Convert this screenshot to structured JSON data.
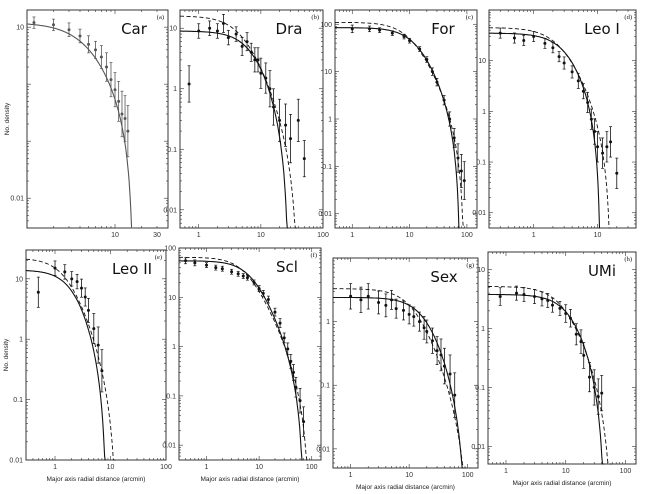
{
  "figure": {
    "xlabel": "Major axis radial distance (arcmin)",
    "ylabel": "No. density"
  },
  "chart_data": [
    {
      "type": "scatter",
      "title": "Car",
      "letter": "(a)",
      "faint": true,
      "xscale": "log",
      "yscale": "log",
      "xlim": [
        1,
        40
      ],
      "ylim": [
        0.003,
        20
      ],
      "xticks": [
        10,
        30
      ],
      "yticks": [
        10,
        0.01
      ],
      "xtick_labels": [
        "10",
        "30"
      ],
      "ytick_labels": [
        "10",
        "0.01"
      ],
      "ylabel": "No. density",
      "x": [
        1.2,
        2,
        3,
        4,
        5,
        6,
        7,
        8,
        9,
        10,
        11,
        12,
        13,
        14
      ],
      "y": [
        12,
        11,
        9,
        7,
        5,
        4,
        3,
        2,
        1.2,
        0.8,
        0.5,
        0.3,
        0.25,
        0.15
      ],
      "yerr": [
        0.1,
        0.1,
        0.12,
        0.12,
        0.15,
        0.15,
        0.2,
        0.25,
        0.3,
        0.3,
        0.35,
        0.4,
        0.4,
        0.45
      ],
      "model_solid": {
        "y0": 12,
        "rc": 5,
        "rt": 16
      },
      "model_dashed": null
    },
    {
      "type": "scatter",
      "title": "Dra",
      "letter": "(b)",
      "xscale": "log",
      "yscale": "log",
      "xlim": [
        0.5,
        100
      ],
      "ylim": [
        0.005,
        20
      ],
      "xticks": [
        1,
        10,
        100
      ],
      "yticks": [
        10,
        1,
        0.1,
        0.01
      ],
      "xtick_labels": [
        "1",
        "10",
        "100"
      ],
      "ytick_labels": [
        "10",
        "1",
        "0.1",
        "0.01"
      ],
      "ylabel": "",
      "x": [
        0.7,
        1,
        1.5,
        2,
        2.5,
        3,
        4,
        5,
        6,
        7,
        8,
        9,
        10,
        12,
        14,
        16,
        20,
        25,
        30,
        40,
        50
      ],
      "y": [
        1.2,
        9,
        10,
        9,
        12,
        7,
        8,
        5,
        6,
        4,
        3,
        3,
        1.8,
        1.5,
        1,
        0.5,
        0.3,
        0.25,
        0.15,
        0.3,
        0.07
      ],
      "yerr": [
        0.3,
        0.12,
        0.12,
        0.12,
        0.15,
        0.12,
        0.12,
        0.15,
        0.15,
        0.15,
        0.2,
        0.2,
        0.25,
        0.25,
        0.3,
        0.3,
        0.35,
        0.35,
        0.4,
        0.35,
        0.3
      ],
      "model_solid": {
        "y0": 9,
        "rc": 8,
        "rt": 28
      },
      "model_dashed": {
        "y0": 16,
        "rc": 5,
        "rt": 40
      }
    },
    {
      "type": "scatter",
      "title": "For",
      "letter": "(c)",
      "xscale": "log",
      "yscale": "log",
      "xlim": [
        0.5,
        150
      ],
      "ylim": [
        0.005,
        200
      ],
      "xticks": [
        1,
        10,
        100
      ],
      "yticks": [
        100,
        10,
        1,
        0.1,
        0.01
      ],
      "xtick_labels": [
        "1",
        "10",
        "100"
      ],
      "ytick_labels": [
        "100",
        "10",
        "1",
        "0.1",
        "0.01"
      ],
      "ylabel": "",
      "x": [
        1,
        2,
        3,
        5,
        8,
        10,
        15,
        20,
        25,
        30,
        40,
        50,
        60,
        70,
        80,
        90
      ],
      "y": [
        80,
        80,
        75,
        65,
        55,
        45,
        30,
        18,
        10,
        6,
        2.5,
        1,
        0.4,
        0.15,
        0.08,
        0.05
      ],
      "yerr": [
        0.08,
        0.06,
        0.05,
        0.05,
        0.05,
        0.05,
        0.05,
        0.06,
        0.08,
        0.08,
        0.1,
        0.15,
        0.2,
        0.3,
        0.35,
        0.4
      ],
      "model_solid": {
        "y0": 85,
        "rc": 13,
        "rt": 75
      },
      "model_dashed": {
        "y0": 110,
        "rc": 10,
        "rt": 90
      }
    },
    {
      "type": "scatter",
      "title": "Leo I",
      "letter": "(d)",
      "xscale": "log",
      "yscale": "log",
      "xlim": [
        0.2,
        40
      ],
      "ylim": [
        0.005,
        100
      ],
      "xticks": [
        1,
        10
      ],
      "yticks": [
        10,
        1,
        0.1,
        0.01
      ],
      "xtick_labels": [
        "1",
        "10"
      ],
      "ytick_labels": [
        "10",
        "1",
        "0.1",
        "0.01"
      ],
      "ylabel": "",
      "x": [
        0.3,
        0.5,
        0.7,
        1,
        1.5,
        2,
        2.5,
        3,
        4,
        5,
        6,
        7,
        8,
        9,
        10,
        12,
        14,
        16,
        20
      ],
      "y": [
        35,
        28,
        25,
        30,
        22,
        18,
        12,
        9,
        6,
        4,
        2.5,
        1.5,
        0.7,
        0.4,
        0.2,
        0.15,
        0.2,
        0.25,
        0.06
      ],
      "yerr": [
        0.1,
        0.1,
        0.1,
        0.1,
        0.1,
        0.1,
        0.1,
        0.12,
        0.12,
        0.15,
        0.15,
        0.2,
        0.2,
        0.25,
        0.3,
        0.3,
        0.3,
        0.3,
        0.3
      ],
      "model_solid": {
        "y0": 35,
        "rc": 3.5,
        "rt": 11
      },
      "model_dashed": {
        "y0": 45,
        "rc": 2.5,
        "rt": 16
      }
    },
    {
      "type": "scatter",
      "title": "Leo II",
      "letter": "(e)",
      "xscale": "log",
      "yscale": "log",
      "xlim": [
        0.3,
        100
      ],
      "ylim": [
        0.01,
        30
      ],
      "xticks": [
        1,
        10,
        100
      ],
      "yticks": [
        10,
        1,
        0.1,
        0.01
      ],
      "xtick_labels": [
        "1",
        "10",
        "100"
      ],
      "ytick_labels": [
        "10",
        "1",
        "0.1",
        "0.01"
      ],
      "ylabel": "No. density",
      "x": [
        0.5,
        1,
        1.5,
        2,
        2.5,
        3,
        3.5,
        4,
        5,
        6,
        7
      ],
      "y": [
        6,
        15,
        13,
        10,
        9,
        7,
        5,
        3,
        1.5,
        0.8,
        0.3
      ],
      "yerr": [
        0.25,
        0.12,
        0.12,
        0.12,
        0.12,
        0.15,
        0.15,
        0.2,
        0.25,
        0.3,
        0.35
      ],
      "model_solid": {
        "y0": 14,
        "rc": 2.3,
        "rt": 8.5
      },
      "model_dashed": {
        "y0": 22,
        "rc": 1.6,
        "rt": 13
      }
    },
    {
      "type": "scatter",
      "title": "Scl",
      "letter": "(f)",
      "xscale": "log",
      "yscale": "log",
      "xlim": [
        0.3,
        150
      ],
      "ylim": [
        0.005,
        100
      ],
      "xticks": [
        1,
        10,
        100
      ],
      "yticks": [
        100,
        10,
        1,
        0.1,
        0.01
      ],
      "xtick_labels": [
        "1",
        "10",
        "100"
      ],
      "ytick_labels": [
        "100",
        "10",
        "1",
        "0.1",
        "0.01"
      ],
      "ylabel": "",
      "x": [
        0.4,
        0.6,
        1,
        1.5,
        2,
        3,
        4,
        5,
        6,
        8,
        10,
        12,
        15,
        20,
        25,
        30,
        35,
        40,
        45,
        50,
        60,
        70
      ],
      "y": [
        55,
        50,
        45,
        40,
        38,
        33,
        30,
        27,
        25,
        20,
        15,
        12,
        9,
        5,
        3,
        1.5,
        0.9,
        0.5,
        0.3,
        0.15,
        0.08,
        0.03
      ],
      "yerr": [
        0.06,
        0.06,
        0.05,
        0.05,
        0.05,
        0.05,
        0.05,
        0.05,
        0.05,
        0.05,
        0.06,
        0.06,
        0.07,
        0.08,
        0.09,
        0.1,
        0.12,
        0.14,
        0.16,
        0.2,
        0.25,
        0.3
      ],
      "model_solid": {
        "y0": 55,
        "rc": 7,
        "rt": 70
      },
      "model_dashed": {
        "y0": 65,
        "rc": 5.5,
        "rt": 90
      }
    },
    {
      "type": "scatter",
      "title": "Sex",
      "letter": "(g)",
      "xscale": "log",
      "yscale": "log",
      "xlim": [
        0.5,
        150
      ],
      "ylim": [
        0.005,
        10
      ],
      "xticks": [
        1,
        10,
        100
      ],
      "yticks": [
        1,
        0.1,
        0.01
      ],
      "xtick_labels": [
        "1",
        "10",
        "100"
      ],
      "ytick_labels": [
        "1",
        "0.1",
        "0.01"
      ],
      "ylabel": "",
      "x": [
        1,
        1.5,
        2,
        3,
        4,
        5,
        6,
        8,
        10,
        12,
        15,
        18,
        20,
        25,
        30,
        35,
        40,
        50,
        60
      ],
      "y": [
        2.5,
        2.2,
        2.5,
        2.0,
        1.8,
        2.2,
        1.6,
        1.5,
        1.3,
        1.2,
        1.0,
        0.8,
        0.7,
        0.5,
        0.35,
        0.3,
        0.2,
        0.15,
        0.07
      ],
      "yerr": [
        0.2,
        0.2,
        0.2,
        0.18,
        0.18,
        0.15,
        0.15,
        0.15,
        0.15,
        0.15,
        0.15,
        0.18,
        0.18,
        0.2,
        0.22,
        0.25,
        0.28,
        0.3,
        0.35
      ],
      "model_solid": {
        "y0": 2.4,
        "rc": 20,
        "rt": 95
      },
      "model_dashed": {
        "y0": 3.3,
        "rc": 12,
        "rt": 110
      }
    },
    {
      "type": "scatter",
      "title": "UMi",
      "letter": "(h)",
      "xscale": "log",
      "yscale": "log",
      "xlim": [
        0.5,
        150
      ],
      "ylim": [
        0.005,
        20
      ],
      "xticks": [
        1,
        10,
        100
      ],
      "yticks": [
        10,
        1,
        0.1,
        0.01
      ],
      "xtick_labels": [
        "1",
        "10",
        "100"
      ],
      "ytick_labels": [
        "10",
        "1",
        "0.1",
        "0.01"
      ],
      "ylabel": "",
      "x": [
        0.8,
        1.5,
        2,
        3,
        4,
        5,
        6,
        8,
        10,
        12,
        15,
        18,
        20,
        25,
        30,
        35,
        40
      ],
      "y": [
        3.5,
        4,
        3.8,
        3.5,
        3.2,
        3,
        2.5,
        2.2,
        1.8,
        1.5,
        0.8,
        0.6,
        0.35,
        0.15,
        0.1,
        0.07,
        0.08
      ],
      "yerr": [
        0.15,
        0.12,
        0.12,
        0.12,
        0.12,
        0.12,
        0.12,
        0.12,
        0.15,
        0.15,
        0.18,
        0.2,
        0.22,
        0.25,
        0.3,
        0.3,
        0.3
      ],
      "model_solid": {
        "y0": 3.8,
        "rc": 13,
        "rt": 45
      },
      "model_dashed": {
        "y0": 5.2,
        "rc": 9,
        "rt": 60
      }
    }
  ]
}
